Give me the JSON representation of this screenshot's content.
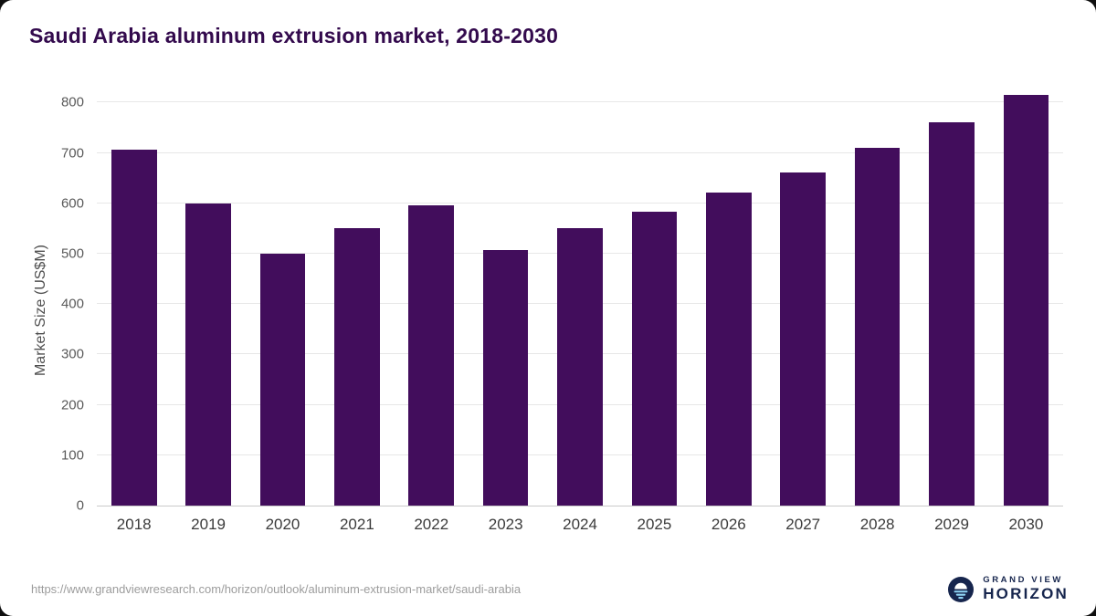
{
  "chart_data": {
    "type": "bar",
    "title": "Saudi Arabia aluminum extrusion market, 2018-2030",
    "categories": [
      "2018",
      "2019",
      "2020",
      "2021",
      "2022",
      "2023",
      "2024",
      "2025",
      "2026",
      "2027",
      "2028",
      "2029",
      "2030"
    ],
    "values": [
      707,
      600,
      500,
      550,
      595,
      508,
      550,
      583,
      622,
      661,
      710,
      760,
      815
    ],
    "xlabel": "",
    "ylabel": "Market Size (US$M)",
    "ylim": [
      0,
      800
    ],
    "yticks": [
      0,
      100,
      200,
      300,
      400,
      500,
      600,
      700,
      800
    ],
    "grid": true,
    "legend": false
  },
  "footer": {
    "source_text": "https://www.grandviewresearch.com/horizon/outlook/aluminum-extrusion-market/saudi-arabia",
    "logo": {
      "line1": "GRAND VIEW",
      "line2": "HORIZON"
    }
  },
  "colors": {
    "bar": "#420d5c",
    "title": "#330a4d",
    "axis_text": "#4f4f4f",
    "tick_text": "#5a5a5a",
    "grid": "#e7e7e7",
    "baseline": "#c9c9c9",
    "url_text": "#9c9c9c",
    "logo_navy": "#16254d",
    "logo_blue": "#8ed3f4",
    "page_bg": "#ffffff",
    "outer_bg": "#0f0f0f"
  }
}
